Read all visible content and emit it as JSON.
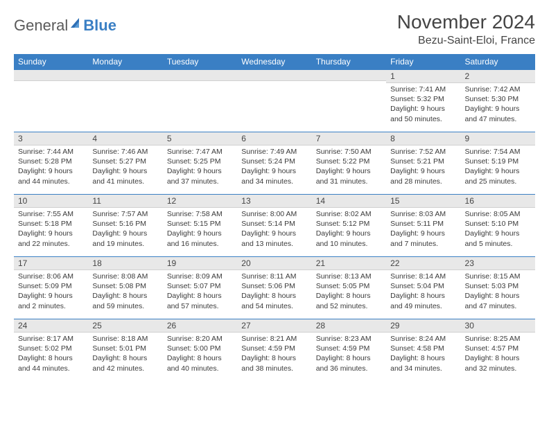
{
  "brand": {
    "part1": "General",
    "part2": "Blue"
  },
  "header": {
    "title": "November 2024",
    "location": "Bezu-Saint-Eloi, France"
  },
  "colors": {
    "header_bg": "#3a7fc4",
    "header_text": "#ffffff",
    "daynum_bg": "#e8e8e8",
    "border": "#3a7fc4",
    "page_bg": "#ffffff",
    "text": "#3a3a3a"
  },
  "weekdays": [
    "Sunday",
    "Monday",
    "Tuesday",
    "Wednesday",
    "Thursday",
    "Friday",
    "Saturday"
  ],
  "weeks": [
    [
      {
        "blank": true
      },
      {
        "blank": true
      },
      {
        "blank": true
      },
      {
        "blank": true
      },
      {
        "blank": true
      },
      {
        "n": "1",
        "sunrise": "Sunrise: 7:41 AM",
        "sunset": "Sunset: 5:32 PM",
        "daylight": "Daylight: 9 hours and 50 minutes."
      },
      {
        "n": "2",
        "sunrise": "Sunrise: 7:42 AM",
        "sunset": "Sunset: 5:30 PM",
        "daylight": "Daylight: 9 hours and 47 minutes."
      }
    ],
    [
      {
        "n": "3",
        "sunrise": "Sunrise: 7:44 AM",
        "sunset": "Sunset: 5:28 PM",
        "daylight": "Daylight: 9 hours and 44 minutes."
      },
      {
        "n": "4",
        "sunrise": "Sunrise: 7:46 AM",
        "sunset": "Sunset: 5:27 PM",
        "daylight": "Daylight: 9 hours and 41 minutes."
      },
      {
        "n": "5",
        "sunrise": "Sunrise: 7:47 AM",
        "sunset": "Sunset: 5:25 PM",
        "daylight": "Daylight: 9 hours and 37 minutes."
      },
      {
        "n": "6",
        "sunrise": "Sunrise: 7:49 AM",
        "sunset": "Sunset: 5:24 PM",
        "daylight": "Daylight: 9 hours and 34 minutes."
      },
      {
        "n": "7",
        "sunrise": "Sunrise: 7:50 AM",
        "sunset": "Sunset: 5:22 PM",
        "daylight": "Daylight: 9 hours and 31 minutes."
      },
      {
        "n": "8",
        "sunrise": "Sunrise: 7:52 AM",
        "sunset": "Sunset: 5:21 PM",
        "daylight": "Daylight: 9 hours and 28 minutes."
      },
      {
        "n": "9",
        "sunrise": "Sunrise: 7:54 AM",
        "sunset": "Sunset: 5:19 PM",
        "daylight": "Daylight: 9 hours and 25 minutes."
      }
    ],
    [
      {
        "n": "10",
        "sunrise": "Sunrise: 7:55 AM",
        "sunset": "Sunset: 5:18 PM",
        "daylight": "Daylight: 9 hours and 22 minutes."
      },
      {
        "n": "11",
        "sunrise": "Sunrise: 7:57 AM",
        "sunset": "Sunset: 5:16 PM",
        "daylight": "Daylight: 9 hours and 19 minutes."
      },
      {
        "n": "12",
        "sunrise": "Sunrise: 7:58 AM",
        "sunset": "Sunset: 5:15 PM",
        "daylight": "Daylight: 9 hours and 16 minutes."
      },
      {
        "n": "13",
        "sunrise": "Sunrise: 8:00 AM",
        "sunset": "Sunset: 5:14 PM",
        "daylight": "Daylight: 9 hours and 13 minutes."
      },
      {
        "n": "14",
        "sunrise": "Sunrise: 8:02 AM",
        "sunset": "Sunset: 5:12 PM",
        "daylight": "Daylight: 9 hours and 10 minutes."
      },
      {
        "n": "15",
        "sunrise": "Sunrise: 8:03 AM",
        "sunset": "Sunset: 5:11 PM",
        "daylight": "Daylight: 9 hours and 7 minutes."
      },
      {
        "n": "16",
        "sunrise": "Sunrise: 8:05 AM",
        "sunset": "Sunset: 5:10 PM",
        "daylight": "Daylight: 9 hours and 5 minutes."
      }
    ],
    [
      {
        "n": "17",
        "sunrise": "Sunrise: 8:06 AM",
        "sunset": "Sunset: 5:09 PM",
        "daylight": "Daylight: 9 hours and 2 minutes."
      },
      {
        "n": "18",
        "sunrise": "Sunrise: 8:08 AM",
        "sunset": "Sunset: 5:08 PM",
        "daylight": "Daylight: 8 hours and 59 minutes."
      },
      {
        "n": "19",
        "sunrise": "Sunrise: 8:09 AM",
        "sunset": "Sunset: 5:07 PM",
        "daylight": "Daylight: 8 hours and 57 minutes."
      },
      {
        "n": "20",
        "sunrise": "Sunrise: 8:11 AM",
        "sunset": "Sunset: 5:06 PM",
        "daylight": "Daylight: 8 hours and 54 minutes."
      },
      {
        "n": "21",
        "sunrise": "Sunrise: 8:13 AM",
        "sunset": "Sunset: 5:05 PM",
        "daylight": "Daylight: 8 hours and 52 minutes."
      },
      {
        "n": "22",
        "sunrise": "Sunrise: 8:14 AM",
        "sunset": "Sunset: 5:04 PM",
        "daylight": "Daylight: 8 hours and 49 minutes."
      },
      {
        "n": "23",
        "sunrise": "Sunrise: 8:15 AM",
        "sunset": "Sunset: 5:03 PM",
        "daylight": "Daylight: 8 hours and 47 minutes."
      }
    ],
    [
      {
        "n": "24",
        "sunrise": "Sunrise: 8:17 AM",
        "sunset": "Sunset: 5:02 PM",
        "daylight": "Daylight: 8 hours and 44 minutes."
      },
      {
        "n": "25",
        "sunrise": "Sunrise: 8:18 AM",
        "sunset": "Sunset: 5:01 PM",
        "daylight": "Daylight: 8 hours and 42 minutes."
      },
      {
        "n": "26",
        "sunrise": "Sunrise: 8:20 AM",
        "sunset": "Sunset: 5:00 PM",
        "daylight": "Daylight: 8 hours and 40 minutes."
      },
      {
        "n": "27",
        "sunrise": "Sunrise: 8:21 AM",
        "sunset": "Sunset: 4:59 PM",
        "daylight": "Daylight: 8 hours and 38 minutes."
      },
      {
        "n": "28",
        "sunrise": "Sunrise: 8:23 AM",
        "sunset": "Sunset: 4:59 PM",
        "daylight": "Daylight: 8 hours and 36 minutes."
      },
      {
        "n": "29",
        "sunrise": "Sunrise: 8:24 AM",
        "sunset": "Sunset: 4:58 PM",
        "daylight": "Daylight: 8 hours and 34 minutes."
      },
      {
        "n": "30",
        "sunrise": "Sunrise: 8:25 AM",
        "sunset": "Sunset: 4:57 PM",
        "daylight": "Daylight: 8 hours and 32 minutes."
      }
    ]
  ]
}
